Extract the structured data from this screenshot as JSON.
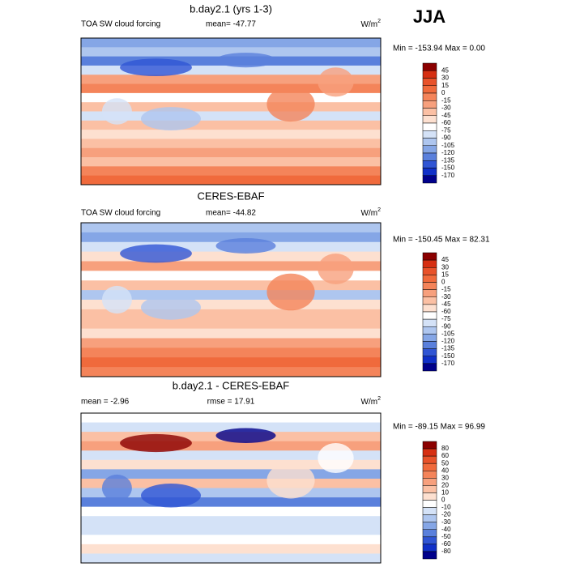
{
  "season": "JJA",
  "panels": [
    {
      "title": "b.day2.1 (yrs 1-3)",
      "left_label": "TOA SW cloud forcing",
      "center_label": "mean= -47.77",
      "units": {
        "base": "W/m",
        "sup": "2"
      },
      "minmax": "Min = -153.94 Max =   0.00",
      "colorbar_labels": [
        "45",
        "30",
        "15",
        "0",
        "-15",
        "-30",
        "-45",
        "-60",
        "-75",
        "-90",
        "-105",
        "-120",
        "-135",
        "-150",
        "-170"
      ],
      "colors": [
        "#8b0000",
        "#d62f12",
        "#e8522a",
        "#f06a3c",
        "#f4845a",
        "#f7a07d",
        "#fbc0a4",
        "#fde0d0",
        "#ffffff",
        "#d4e2f7",
        "#aec6ef",
        "#85a6e6",
        "#5a80dc",
        "#3055d4",
        "#1030c8",
        "#00008b"
      ]
    },
    {
      "title": "CERES-EBAF",
      "left_label": "TOA SW cloud forcing",
      "center_label": "mean= -44.82",
      "units": {
        "base": "W/m",
        "sup": "2"
      },
      "minmax": "Min = -150.45 Max =  82.31",
      "colorbar_labels": [
        "45",
        "30",
        "15",
        "0",
        "-15",
        "-30",
        "-45",
        "-60",
        "-75",
        "-90",
        "-105",
        "-120",
        "-135",
        "-150",
        "-170"
      ],
      "colors": [
        "#8b0000",
        "#d62f12",
        "#e8522a",
        "#f06a3c",
        "#f4845a",
        "#f7a07d",
        "#fbc0a4",
        "#fde0d0",
        "#ffffff",
        "#d4e2f7",
        "#aec6ef",
        "#85a6e6",
        "#5a80dc",
        "#3055d4",
        "#1030c8",
        "#00008b"
      ]
    },
    {
      "title": "b.day2.1 - CERES-EBAF",
      "left_label": "mean =  -2.96",
      "center_label": "rmse =  17.91",
      "units": {
        "base": "W/m",
        "sup": "2"
      },
      "minmax": "Min = -89.15 Max =  96.99",
      "colorbar_labels": [
        "80",
        "60",
        "50",
        "40",
        "30",
        "20",
        "10",
        "0",
        "-10",
        "-20",
        "-30",
        "-40",
        "-50",
        "-60",
        "-80"
      ],
      "colors": [
        "#8b0000",
        "#d62f12",
        "#e8522a",
        "#f06a3c",
        "#f4845a",
        "#f7a07d",
        "#fbc0a4",
        "#fde0d0",
        "#ffffff",
        "#d4e2f7",
        "#aec6ef",
        "#85a6e6",
        "#5a80dc",
        "#3055d4",
        "#1030c8",
        "#00008b"
      ]
    }
  ]
}
